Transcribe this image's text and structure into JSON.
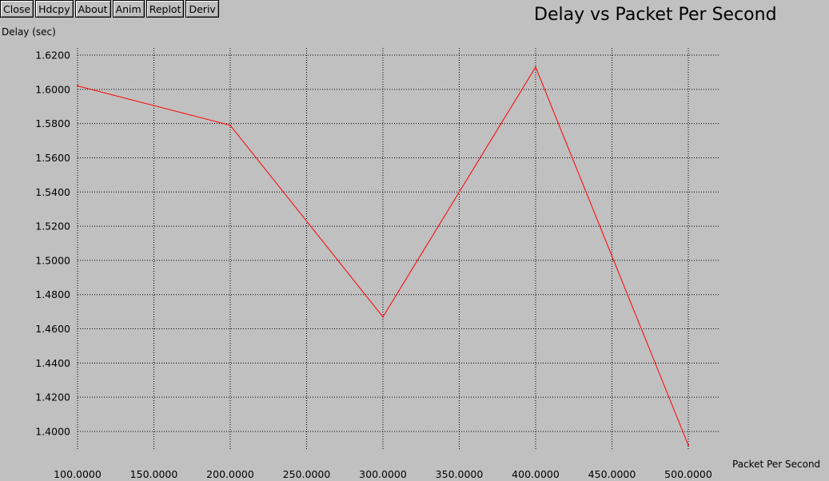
{
  "toolbar": {
    "buttons": [
      {
        "label": "Close"
      },
      {
        "label": "Hdcpy"
      },
      {
        "label": "About"
      },
      {
        "label": "Anim"
      },
      {
        "label": "Replot"
      },
      {
        "label": "Deriv"
      }
    ]
  },
  "chart_data": {
    "type": "line",
    "title": "Delay vs Packet Per Second",
    "xlabel": "Packet Per Second",
    "ylabel": "Delay (sec)",
    "xlim": [
      100,
      500
    ],
    "ylim": [
      1.38,
      1.62
    ],
    "x_ticks": [
      "100.0000",
      "150.0000",
      "200.0000",
      "250.0000",
      "300.0000",
      "350.0000",
      "400.0000",
      "450.0000",
      "500.0000"
    ],
    "y_ticks": [
      "1.4000",
      "1.4200",
      "1.4400",
      "1.4600",
      "1.4800",
      "1.5000",
      "1.5200",
      "1.5400",
      "1.5600",
      "1.5800",
      "1.6000",
      "1.6200"
    ],
    "grid": true,
    "series": [
      {
        "color": "#ff0000",
        "x": [
          100,
          200,
          300,
          400,
          500
        ],
        "y": [
          1.602,
          1.579,
          1.467,
          1.613,
          1.392
        ]
      }
    ]
  }
}
